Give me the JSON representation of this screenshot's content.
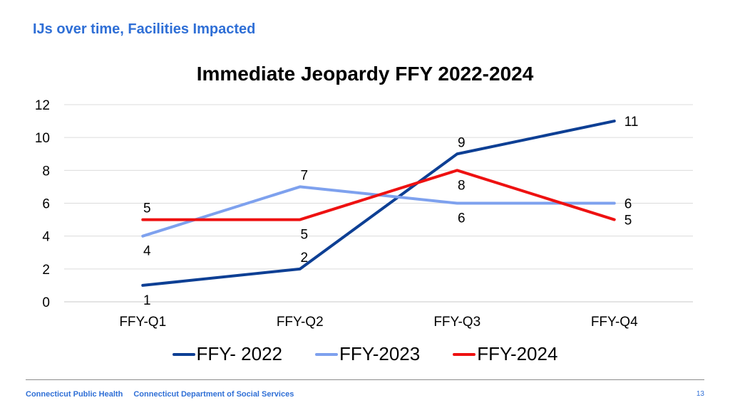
{
  "slide": {
    "title": "IJs over time, Facilities Impacted",
    "footer_org1": "Connecticut Public Health",
    "footer_org2": "Connecticut Department of Social Services",
    "page_number": "13"
  },
  "chart_data": {
    "type": "line",
    "title": "Immediate Jeopardy FFY 2022-2024",
    "xlabel": "",
    "ylabel": "",
    "categories": [
      "FFY-Q1",
      "FFY-Q2",
      "FFY-Q3",
      "FFY-Q4"
    ],
    "ylim": [
      0,
      12
    ],
    "yticks": [
      0,
      2,
      4,
      6,
      8,
      10,
      12
    ],
    "grid": true,
    "legend_position": "bottom",
    "series": [
      {
        "name": "FFY- 2022",
        "values": [
          1,
          2,
          9,
          11
        ],
        "color": "#0d3f94",
        "label_side": [
          "below",
          "above",
          "above",
          "above"
        ]
      },
      {
        "name": "FFY-2023",
        "values": [
          4,
          7,
          6,
          6
        ],
        "color": "#7ea1ee",
        "label_side": [
          "below",
          "above",
          "below",
          "above"
        ]
      },
      {
        "name": "FFY-2024",
        "values": [
          5,
          5,
          8,
          5
        ],
        "color": "#ee1111",
        "label_side": [
          "above",
          "below",
          "below",
          "below"
        ]
      }
    ]
  }
}
